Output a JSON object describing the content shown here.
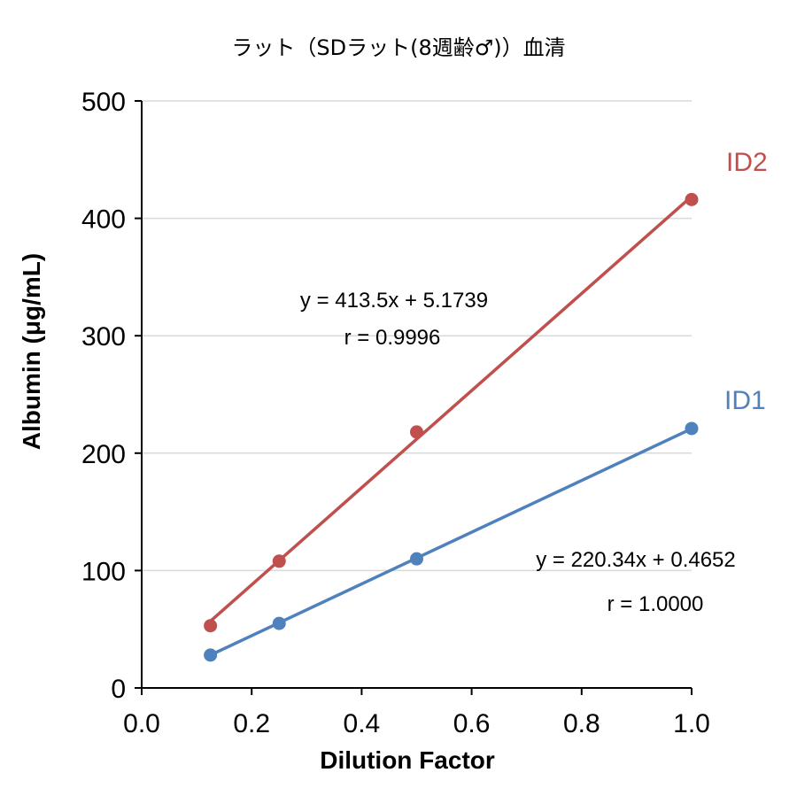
{
  "chart_data": {
    "type": "scatter",
    "title": "ラット（SDラット(8週齢♂)）血清",
    "xlabel": "Dilution Factor",
    "ylabel": "Albumin (μg/mL)",
    "xlim": [
      0,
      1
    ],
    "ylim": [
      0,
      500
    ],
    "x_ticks": [
      "0.0",
      "0.2",
      "0.4",
      "0.6",
      "0.8",
      "1.0"
    ],
    "y_ticks": [
      "0",
      "100",
      "200",
      "300",
      "400",
      "500"
    ],
    "grid": "horizontal",
    "series": [
      {
        "name": "ID2",
        "color": "#C0504D",
        "x": [
          0.125,
          0.25,
          0.5,
          1.0
        ],
        "y": [
          53,
          108,
          218,
          416
        ],
        "trendline": {
          "slope": 413.5,
          "intercept": 5.1739
        },
        "equation": "y = 413.5x + 5.1739",
        "r_text": "r = 0.9996"
      },
      {
        "name": "ID1",
        "color": "#4F81BD",
        "x": [
          0.125,
          0.25,
          0.5,
          1.0
        ],
        "y": [
          28,
          55,
          110,
          221
        ],
        "trendline": {
          "slope": 220.34,
          "intercept": 0.4652
        },
        "equation": "y = 220.34x + 0.4652",
        "r_text": "r = 1.0000"
      }
    ]
  }
}
